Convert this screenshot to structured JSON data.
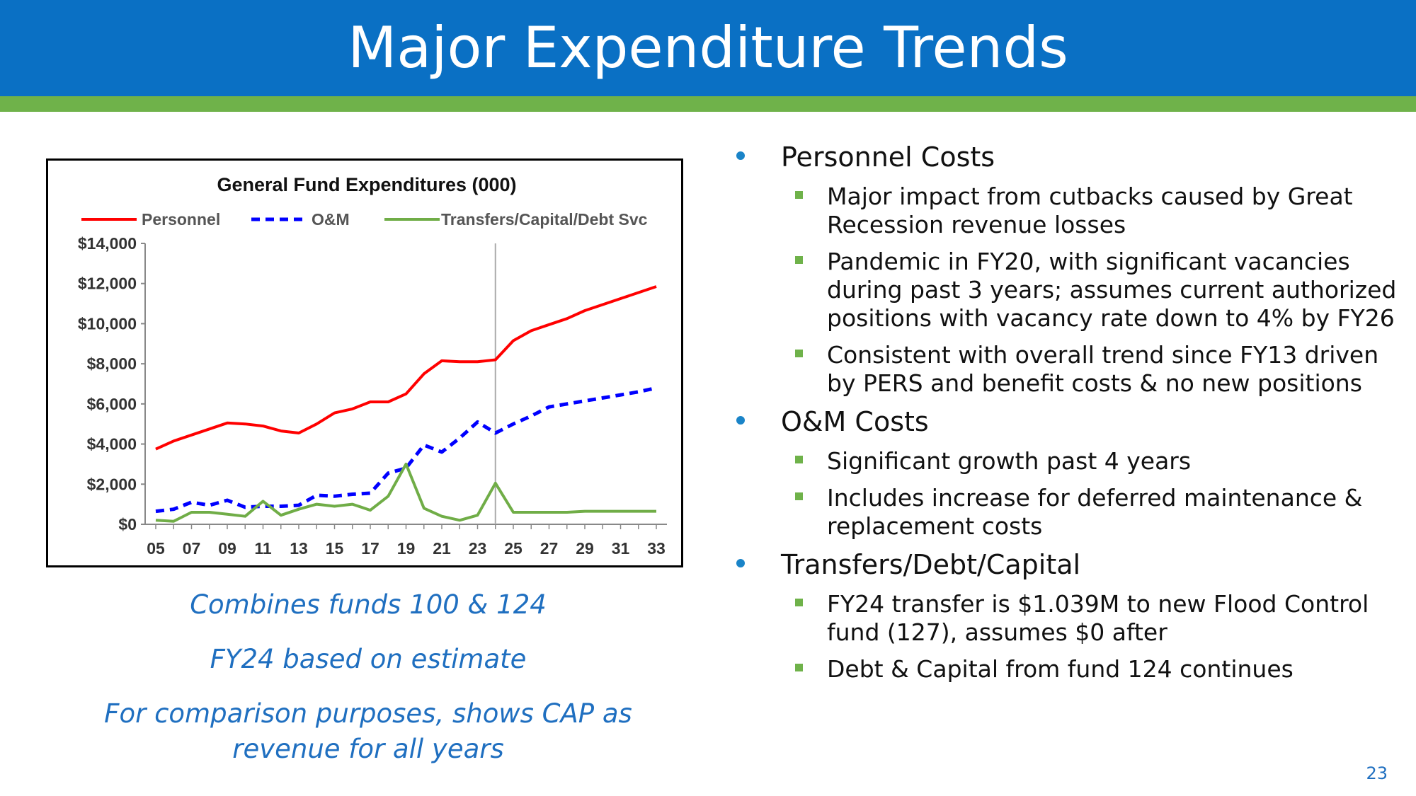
{
  "slide": {
    "title": "Major Expenditure Trends",
    "page_number": "23",
    "colors": {
      "header": "#0a70c4",
      "stripe": "#6fb24a",
      "note_text": "#1f6fc0"
    }
  },
  "notes": [
    "Combines funds 100 & 124",
    "FY24 based on estimate",
    "For comparison purposes, shows CAP as revenue for all years"
  ],
  "bullets": [
    {
      "text": "Personnel Costs",
      "sub": [
        "Major impact from cutbacks caused by Great Recession revenue losses",
        "Pandemic in FY20, with significant vacancies during past 3 years; assumes current authorized positions with vacancy rate down to 4% by FY26",
        "Consistent with overall trend since FY13 driven by PERS and benefit costs & no new positions"
      ]
    },
    {
      "text": "O&M Costs",
      "sub": [
        "Significant growth past 4 years",
        "Includes increase for deferred maintenance & replacement costs"
      ]
    },
    {
      "text": "Transfers/Debt/Capital",
      "sub": [
        "FY24 transfer is $1.039M to new Flood Control fund (127), assumes $0 after",
        "Debt & Capital from fund 124 continues"
      ]
    }
  ],
  "chart_data": {
    "type": "line",
    "title": "General Fund Expenditures  (000)",
    "x": [
      "05",
      "06",
      "07",
      "08",
      "09",
      "10",
      "11",
      "12",
      "13",
      "14",
      "15",
      "16",
      "17",
      "18",
      "19",
      "20",
      "21",
      "22",
      "23",
      "24",
      "25",
      "26",
      "27",
      "28",
      "29",
      "30",
      "31",
      "32",
      "33"
    ],
    "x_tick_labels": [
      "05",
      "07",
      "09",
      "11",
      "13",
      "15",
      "17",
      "19",
      "21",
      "23",
      "25",
      "27",
      "29",
      "31",
      "33"
    ],
    "ylim": [
      0,
      14000
    ],
    "y_ticks": [
      0,
      2000,
      4000,
      6000,
      8000,
      10000,
      12000,
      14000
    ],
    "y_tick_labels": [
      "$0",
      "$2,000",
      "$4,000",
      "$6,000",
      "$8,000",
      "$10,000",
      "$12,000",
      "$14,000"
    ],
    "vertical_marker_at": "24",
    "legend_position": "top",
    "grid": false,
    "series": [
      {
        "name": "Personnel",
        "color": "#ff0000",
        "style": "solid",
        "values": [
          3750,
          4150,
          4450,
          4750,
          5050,
          5000,
          4900,
          4650,
          4550,
          5000,
          5550,
          5750,
          6100,
          6100,
          6500,
          7500,
          8150,
          8100,
          8100,
          8200,
          9150,
          9650,
          9950,
          10250,
          10650,
          10950,
          11250,
          11550,
          11850
        ]
      },
      {
        "name": "O&M",
        "color": "#0000ff",
        "style": "dashed",
        "values": [
          650,
          750,
          1100,
          950,
          1200,
          850,
          900,
          900,
          950,
          1450,
          1400,
          1500,
          1550,
          2550,
          2800,
          3950,
          3600,
          4300,
          5100,
          4550,
          5000,
          5400,
          5850,
          6000,
          6150,
          6300,
          6450,
          6600,
          6800
        ]
      },
      {
        "name": "Transfers/Capital/Debt Svc",
        "color": "#70ad47",
        "style": "solid",
        "values": [
          200,
          150,
          600,
          600,
          500,
          400,
          1150,
          450,
          750,
          1000,
          900,
          1000,
          700,
          1400,
          3000,
          800,
          400,
          200,
          450,
          2050,
          600,
          600,
          600,
          600,
          650,
          650,
          650,
          650,
          650
        ]
      }
    ]
  }
}
